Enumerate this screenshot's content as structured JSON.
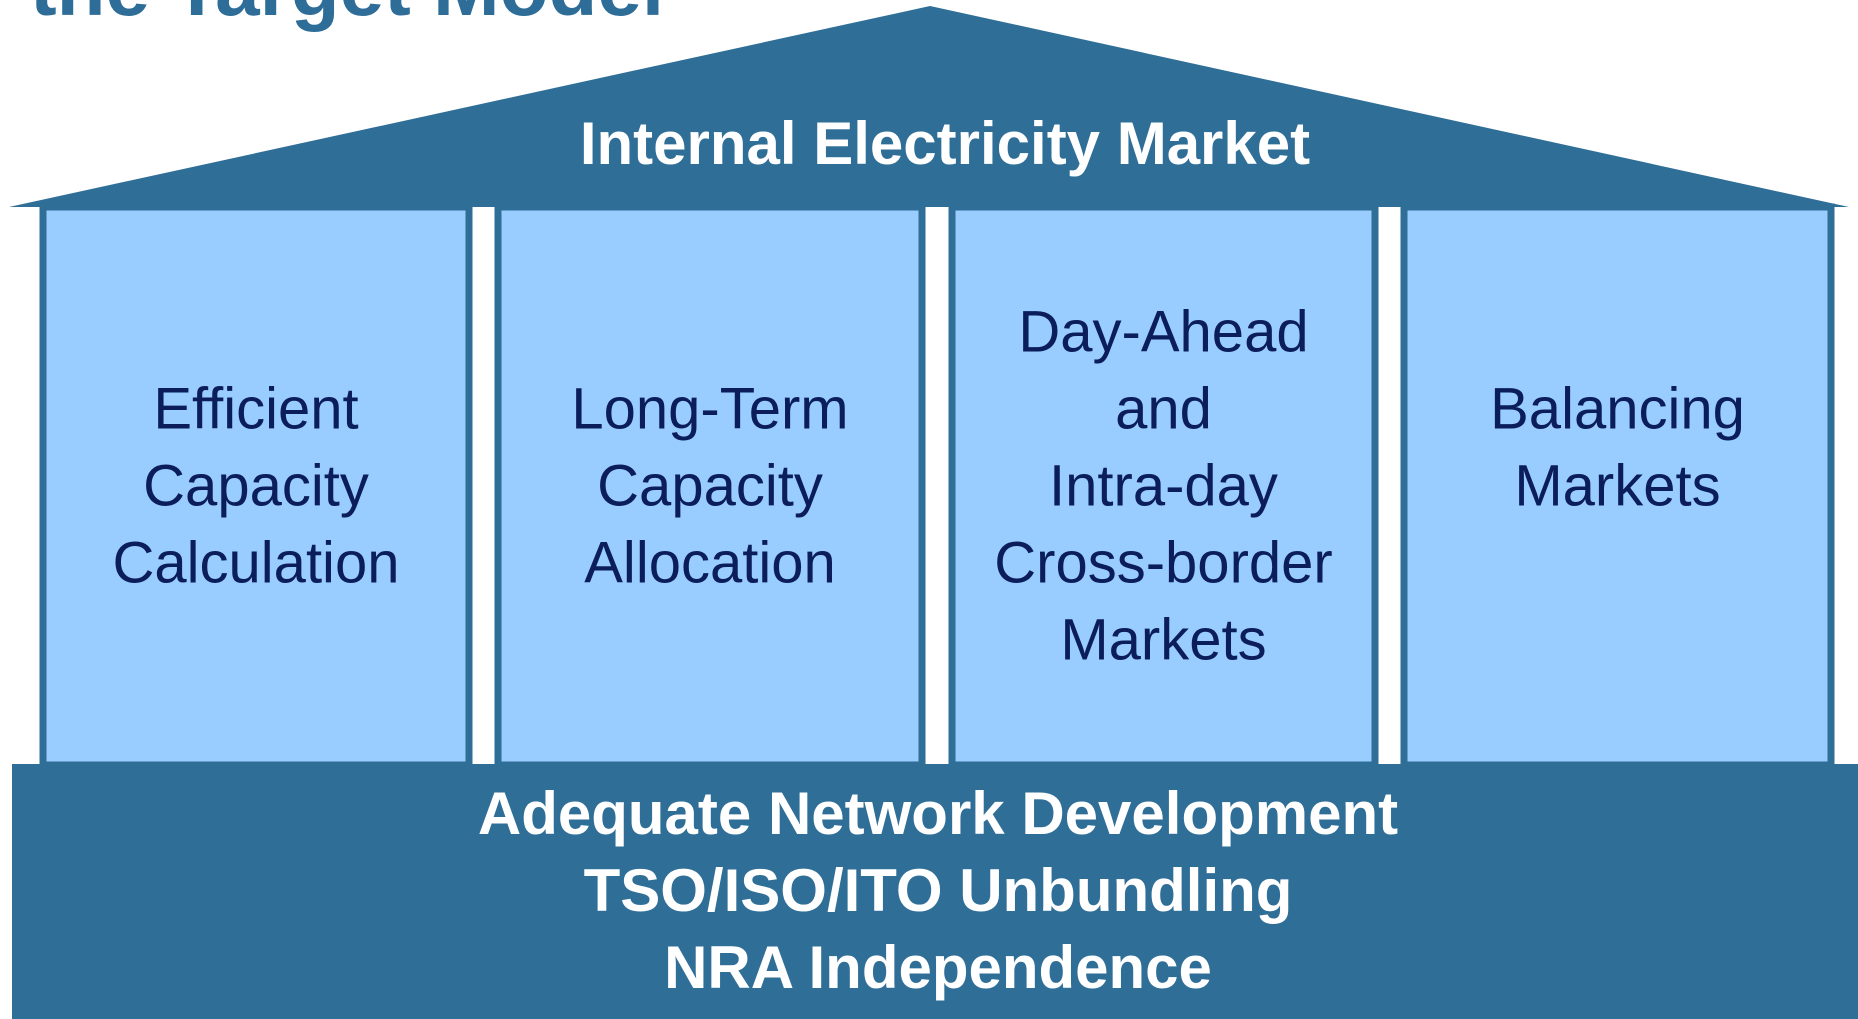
{
  "header": {
    "title": "the Target Model"
  },
  "roof": {
    "label": "Internal Electricity Market"
  },
  "pillars": [
    {
      "lines": [
        "Efficient",
        "Capacity",
        "Calculation"
      ]
    },
    {
      "lines": [
        "Long-Term",
        "Capacity",
        "Allocation"
      ]
    },
    {
      "lines": [
        "Day-Ahead",
        "and",
        "Intra-day",
        "Cross-border",
        "Markets"
      ]
    },
    {
      "lines": [
        "Balancing",
        "Markets"
      ]
    }
  ],
  "foundation": {
    "lines": [
      "Adequate Network Development",
      "TSO/ISO/ITO Unbundling",
      "NRA Independence"
    ]
  }
}
